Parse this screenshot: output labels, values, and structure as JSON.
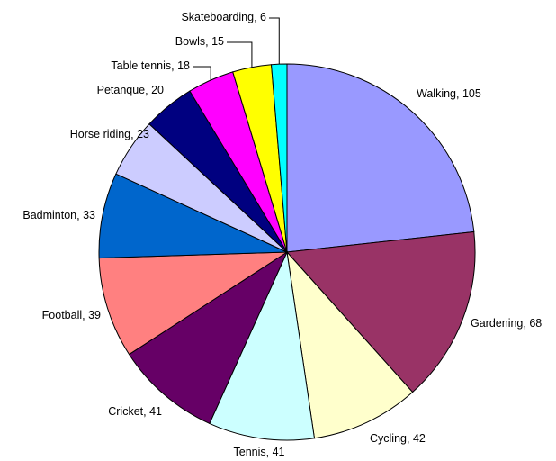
{
  "chart_data": {
    "type": "pie",
    "categories": [
      "Walking",
      "Gardening",
      "Cycling",
      "Tennis",
      "Cricket",
      "Football",
      "Badminton",
      "Horse riding",
      "Petanque",
      "Table tennis",
      "Bowls",
      "Skateboarding"
    ],
    "values": [
      105,
      68,
      42,
      41,
      41,
      39,
      33,
      23,
      20,
      18,
      15,
      6
    ],
    "colors": [
      "#9999ff",
      "#993366",
      "#ffffcc",
      "#ccffff",
      "#660066",
      "#ff8080",
      "#0066cc",
      "#ccccff",
      "#000080",
      "#ff00ff",
      "#ffff00",
      "#00ffff"
    ]
  }
}
